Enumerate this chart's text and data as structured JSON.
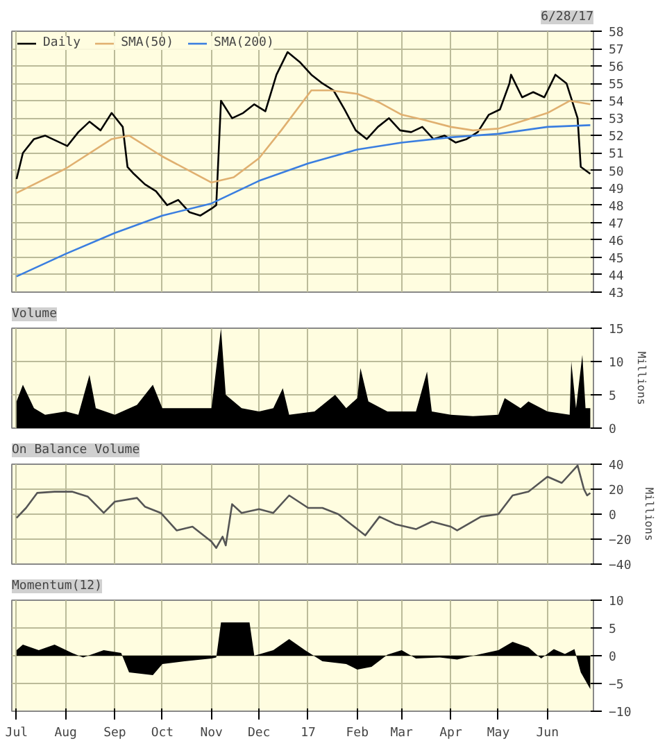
{
  "chart_data": [
    {
      "type": "line",
      "annotations": [
        "6/28/17"
      ],
      "legend": "top left",
      "grid": true,
      "tick_labels": "y",
      "xlim": [
        "2016-06-28",
        "2017-06-30"
      ],
      "xticks": [
        {
          "value": "2016-07-01",
          "label": null
        },
        {
          "value": "2016-08-01",
          "label": null
        },
        {
          "value": "2016-09-01",
          "label": null
        },
        {
          "value": "2016-10-01",
          "label": null
        },
        {
          "value": "2016-11-01",
          "label": null
        },
        {
          "value": "2016-12-01",
          "label": null
        },
        {
          "value": "2017-01-01",
          "label": null
        },
        {
          "value": "2017-02-01",
          "label": null
        },
        {
          "value": "2017-03-01",
          "label": null
        },
        {
          "value": "2017-04-01",
          "label": null
        },
        {
          "value": "2017-05-01",
          "label": null
        },
        {
          "value": "2017-06-01",
          "label": null
        }
      ],
      "ylim": [
        43,
        58
      ],
      "yticks": [
        43,
        44,
        45,
        46,
        47,
        48,
        49,
        50,
        51,
        52,
        53,
        54,
        55,
        56,
        57,
        58
      ],
      "series": [
        {
          "name": "Daily",
          "color": "#000000",
          "x": [
            "2016-07-01",
            "2016-07-05",
            "2016-07-12",
            "2016-07-19",
            "2016-07-26",
            "2016-08-02",
            "2016-08-09",
            "2016-08-16",
            "2016-08-23",
            "2016-08-30",
            "2016-09-06",
            "2016-09-09",
            "2016-09-13",
            "2016-09-20",
            "2016-09-27",
            "2016-10-04",
            "2016-10-11",
            "2016-10-18",
            "2016-10-25",
            "2016-11-01",
            "2016-11-04",
            "2016-11-07",
            "2016-11-14",
            "2016-11-21",
            "2016-11-28",
            "2016-12-05",
            "2016-12-12",
            "2016-12-19",
            "2016-12-27",
            "2017-01-03",
            "2017-01-10",
            "2017-01-17",
            "2017-01-24",
            "2017-01-31",
            "2017-02-07",
            "2017-02-14",
            "2017-02-21",
            "2017-02-28",
            "2017-03-07",
            "2017-03-14",
            "2017-03-21",
            "2017-03-28",
            "2017-04-04",
            "2017-04-11",
            "2017-04-18",
            "2017-04-25",
            "2017-05-02",
            "2017-05-08",
            "2017-05-09",
            "2017-05-16",
            "2017-05-23",
            "2017-05-30",
            "2017-06-06",
            "2017-06-13",
            "2017-06-20",
            "2017-06-22",
            "2017-06-28"
          ],
          "values": [
            49.5,
            51,
            51.8,
            52,
            51.7,
            51.4,
            52.2,
            52.8,
            52.3,
            53.3,
            52.5,
            50.2,
            49.8,
            49.2,
            48.8,
            48,
            48.3,
            47.6,
            47.4,
            47.8,
            48,
            54,
            53,
            53.3,
            53.8,
            53.4,
            55.5,
            56.8,
            56.2,
            55.5,
            55,
            54.6,
            53.5,
            52.3,
            51.8,
            52.5,
            53,
            52.3,
            52.2,
            52.5,
            51.8,
            52,
            51.6,
            51.8,
            52.2,
            53.2,
            53.5,
            55,
            55.5,
            54.2,
            54.5,
            54.2,
            55.5,
            55,
            53,
            50.2,
            49.8
          ]
        },
        {
          "name": "SMA(50)",
          "color": "#e0b070",
          "x": [
            "2016-07-01",
            "2016-08-01",
            "2016-08-30",
            "2016-09-10",
            "2016-10-01",
            "2016-11-01",
            "2016-11-15",
            "2016-12-01",
            "2016-12-15",
            "2017-01-03",
            "2017-01-15",
            "2017-02-01",
            "2017-02-15",
            "2017-03-01",
            "2017-03-15",
            "2017-04-01",
            "2017-04-15",
            "2017-05-01",
            "2017-05-15",
            "2017-06-01",
            "2017-06-15",
            "2017-06-28"
          ],
          "values": [
            48.7,
            50.1,
            51.8,
            52,
            50.8,
            49.3,
            49.6,
            50.7,
            52.3,
            54.6,
            54.6,
            54.4,
            53.9,
            53.2,
            52.9,
            52.5,
            52.3,
            52.4,
            52.8,
            53.3,
            54,
            53.8
          ]
        },
        {
          "name": "SMA(200)",
          "color": "#3a7ee0",
          "x": [
            "2016-07-01",
            "2016-08-01",
            "2016-09-01",
            "2016-10-01",
            "2016-11-01",
            "2016-12-01",
            "2017-01-01",
            "2017-02-01",
            "2017-03-01",
            "2017-04-01",
            "2017-05-01",
            "2017-06-01",
            "2017-06-28"
          ],
          "values": [
            43.9,
            45.2,
            46.4,
            47.4,
            48.1,
            49.4,
            50.4,
            51.2,
            51.6,
            51.9,
            52.1,
            52.5,
            52.6
          ]
        }
      ]
    },
    {
      "type": "area",
      "title": "Volume",
      "ylabel": "Millions",
      "grid": true,
      "tick_labels": "y",
      "xlim": [
        "2016-06-28",
        "2017-06-30"
      ],
      "xticks": [
        {
          "value": "2016-07-01",
          "label": null
        },
        {
          "value": "2016-08-01",
          "label": null
        },
        {
          "value": "2016-09-01",
          "label": null
        },
        {
          "value": "2016-10-01",
          "label": null
        },
        {
          "value": "2016-11-01",
          "label": null
        },
        {
          "value": "2016-12-01",
          "label": null
        },
        {
          "value": "2017-01-01",
          "label": null
        },
        {
          "value": "2017-02-01",
          "label": null
        },
        {
          "value": "2017-03-01",
          "label": null
        },
        {
          "value": "2017-04-01",
          "label": null
        },
        {
          "value": "2017-05-01",
          "label": null
        },
        {
          "value": "2017-06-01",
          "label": null
        }
      ],
      "ylim": [
        0,
        15
      ],
      "yticks": [
        0,
        5,
        10,
        15
      ],
      "series": [
        {
          "color": "#000000",
          "x": [
            "2016-07-01",
            "2016-07-05",
            "2016-07-12",
            "2016-07-19",
            "2016-08-01",
            "2016-08-09",
            "2016-08-16",
            "2016-08-20",
            "2016-09-01",
            "2016-09-15",
            "2016-09-25",
            "2016-10-01",
            "2016-10-15",
            "2016-11-01",
            "2016-11-07",
            "2016-11-10",
            "2016-11-20",
            "2016-12-01",
            "2016-12-10",
            "2016-12-16",
            "2016-12-20",
            "2017-01-05",
            "2017-01-18",
            "2017-01-25",
            "2017-02-01",
            "2017-02-03",
            "2017-02-08",
            "2017-02-20",
            "2017-03-01",
            "2017-03-10",
            "2017-03-17",
            "2017-03-20",
            "2017-04-01",
            "2017-04-15",
            "2017-05-01",
            "2017-05-05",
            "2017-05-15",
            "2017-05-20",
            "2017-06-01",
            "2017-06-15",
            "2017-06-16",
            "2017-06-19",
            "2017-06-23",
            "2017-06-25",
            "2017-06-28"
          ],
          "values": [
            4,
            6.5,
            3,
            2,
            2.5,
            2,
            8,
            3,
            2,
            3.5,
            6.5,
            3,
            3,
            3,
            15,
            5,
            3,
            2.5,
            3,
            6,
            2,
            2.5,
            5,
            3,
            4.5,
            9,
            4,
            2.5,
            2.5,
            2.5,
            8.5,
            2.5,
            2,
            1.8,
            2,
            4.5,
            3,
            4,
            2.5,
            2,
            10,
            3,
            11,
            3,
            3
          ]
        }
      ]
    },
    {
      "type": "line",
      "title": "On Balance Volume",
      "ylabel": "Millions",
      "grid": true,
      "tick_labels": "y",
      "xlim": [
        "2016-06-28",
        "2017-06-30"
      ],
      "xticks": [
        {
          "value": "2016-07-01",
          "label": null
        },
        {
          "value": "2016-08-01",
          "label": null
        },
        {
          "value": "2016-09-01",
          "label": null
        },
        {
          "value": "2016-10-01",
          "label": null
        },
        {
          "value": "2016-11-01",
          "label": null
        },
        {
          "value": "2016-12-01",
          "label": null
        },
        {
          "value": "2017-01-01",
          "label": null
        },
        {
          "value": "2017-02-01",
          "label": null
        },
        {
          "value": "2017-03-01",
          "label": null
        },
        {
          "value": "2017-04-01",
          "label": null
        },
        {
          "value": "2017-05-01",
          "label": null
        },
        {
          "value": "2017-06-01",
          "label": null
        }
      ],
      "ylim": [
        -40,
        40
      ],
      "yticks": [
        -40,
        -20,
        0,
        20,
        40
      ],
      "series": [
        {
          "color": "#555555",
          "x": [
            "2016-07-01",
            "2016-07-07",
            "2016-07-14",
            "2016-07-25",
            "2016-08-05",
            "2016-08-15",
            "2016-08-25",
            "2016-09-01",
            "2016-09-15",
            "2016-09-20",
            "2016-09-30",
            "2016-10-10",
            "2016-10-20",
            "2016-11-01",
            "2016-11-04",
            "2016-11-08",
            "2016-11-10",
            "2016-11-14",
            "2016-11-20",
            "2016-12-01",
            "2016-12-10",
            "2016-12-20",
            "2017-01-01",
            "2017-01-10",
            "2017-01-20",
            "2017-02-01",
            "2017-02-06",
            "2017-02-15",
            "2017-02-25",
            "2017-03-10",
            "2017-03-20",
            "2017-04-01",
            "2017-04-05",
            "2017-04-20",
            "2017-05-01",
            "2017-05-10",
            "2017-05-20",
            "2017-06-01",
            "2017-06-10",
            "2017-06-20",
            "2017-06-24",
            "2017-06-26",
            "2017-06-28"
          ],
          "values": [
            -3,
            5,
            17,
            18,
            18,
            14,
            1,
            10,
            13,
            6,
            1,
            -13,
            -10,
            -22,
            -27,
            -18,
            -25,
            8,
            1,
            4,
            1,
            15,
            5,
            5,
            0,
            -12,
            -17,
            -2,
            -8,
            -12,
            -6,
            -10,
            -13,
            -2,
            0,
            15,
            18,
            30,
            25,
            39,
            20,
            15,
            17
          ]
        }
      ]
    },
    {
      "type": "area",
      "title": "Momentum(12)",
      "grid": true,
      "xlim": [
        "2016-06-28",
        "2017-06-30"
      ],
      "xticks": [
        {
          "value": "2016-07-01",
          "label": "Jul"
        },
        {
          "value": "2016-08-01",
          "label": "Aug"
        },
        {
          "value": "2016-09-01",
          "label": "Sep"
        },
        {
          "value": "2016-10-01",
          "label": "Oct"
        },
        {
          "value": "2016-11-01",
          "label": "Nov"
        },
        {
          "value": "2016-12-01",
          "label": "Dec"
        },
        {
          "value": "2017-01-01",
          "label": "17"
        },
        {
          "value": "2017-02-01",
          "label": "Feb"
        },
        {
          "value": "2017-03-01",
          "label": "Mar"
        },
        {
          "value": "2017-04-01",
          "label": "Apr"
        },
        {
          "value": "2017-05-01",
          "label": "May"
        },
        {
          "value": "2017-06-01",
          "label": "Jun"
        }
      ],
      "ylim": [
        -10,
        10
      ],
      "yticks": [
        -10,
        -5,
        0,
        5,
        10
      ],
      "series": [
        {
          "color": "#000000",
          "x": [
            "2016-07-01",
            "2016-07-05",
            "2016-07-15",
            "2016-07-25",
            "2016-08-05",
            "2016-08-12",
            "2016-08-25",
            "2016-09-05",
            "2016-09-10",
            "2016-09-25",
            "2016-10-01",
            "2016-10-15",
            "2016-11-01",
            "2016-11-04",
            "2016-11-07",
            "2016-11-25",
            "2016-11-28",
            "2016-12-10",
            "2016-12-20",
            "2016-12-30",
            "2017-01-10",
            "2017-01-25",
            "2017-02-01",
            "2017-02-10",
            "2017-02-20",
            "2017-03-01",
            "2017-03-10",
            "2017-03-25",
            "2017-04-05",
            "2017-04-20",
            "2017-05-01",
            "2017-05-10",
            "2017-05-20",
            "2017-05-28",
            "2017-06-05",
            "2017-06-12",
            "2017-06-18",
            "2017-06-22",
            "2017-06-28"
          ],
          "values": [
            1,
            2,
            1,
            2,
            0.5,
            -0.3,
            1,
            0.5,
            -3,
            -3.5,
            -1.5,
            -1,
            -0.5,
            -0.3,
            6,
            6,
            0,
            1,
            3,
            1,
            -1,
            -1.5,
            -2.5,
            -2,
            0.2,
            1,
            -0.5,
            -0.3,
            -0.7,
            0.3,
            1,
            2.5,
            1.5,
            -0.5,
            1.2,
            0.3,
            1.2,
            -3,
            -6
          ]
        }
      ]
    }
  ]
}
